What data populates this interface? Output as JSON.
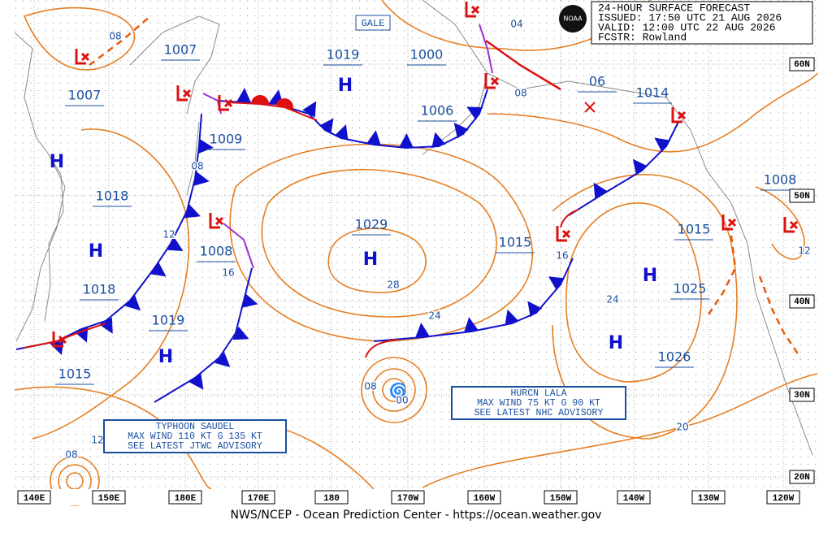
{
  "header": {
    "lines": [
      "24-HOUR SURFACE FORECAST",
      "ISSUED: 17:50 UTC 21 AUG 2026",
      "VALID:  12:00 UTC 22 AUG 2026",
      "FCSTR:  Rowland"
    ]
  },
  "logo_text": "NOAA",
  "gale_label": "GALE",
  "pressures": [
    1007,
    1007,
    1019,
    1000,
    1006,
    "06",
    1014,
    1009,
    1018,
    1029,
    1015,
    1015,
    1008,
    1008,
    1018,
    1025,
    1019,
    1015,
    1026
  ],
  "high_labels": [
    "H",
    "H",
    "H",
    "H",
    "H",
    "H",
    "H"
  ],
  "isobar_labels": [
    "08",
    "04",
    "08",
    "08",
    "12",
    "16",
    "28",
    "24",
    "16",
    "24",
    "12",
    "20",
    "12",
    "08",
    "08",
    "00",
    "12"
  ],
  "lon_labels": [
    "140E",
    "150E",
    "180E",
    "170E",
    "180",
    "170W",
    "160W",
    "150W",
    "140W",
    "130W",
    "120W"
  ],
  "lat_labels": [
    "60N",
    "50N",
    "40N",
    "30N",
    "20N"
  ],
  "advisories": [
    {
      "lines": [
        "TYPHOON SAUDEL",
        "MAX WIND 110 KT G 135 KT",
        "SEE LATEST JTWC ADVISORY"
      ]
    },
    {
      "lines": [
        "HURCN LALA",
        "MAX WIND 75 KT G 90 KT",
        "SEE LATEST NHC ADVISORY"
      ]
    }
  ],
  "footer": "NWS/NCEP - Ocean Prediction Center - https://ocean.weather.gov"
}
